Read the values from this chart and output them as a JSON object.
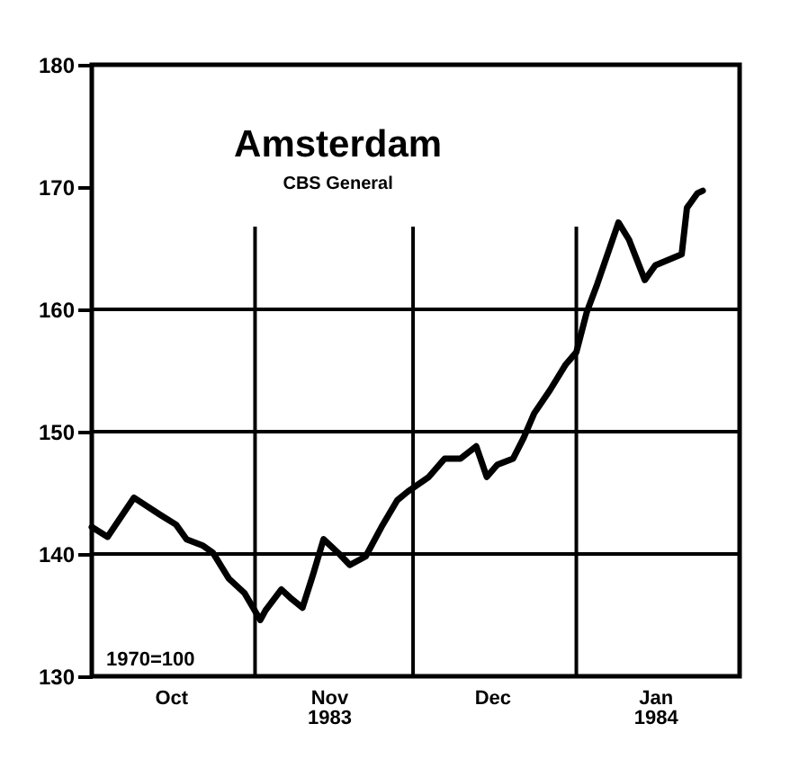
{
  "chart_data": {
    "type": "line",
    "title": "Amsterdam",
    "subtitle": "CBS General",
    "annotations": [
      "1970=100"
    ],
    "x": [
      "1983-10-01",
      "1983-10-04",
      "1983-10-09",
      "1983-10-14",
      "1983-10-17",
      "1983-10-19",
      "1983-10-22",
      "1983-10-24",
      "1983-10-27",
      "1983-10-30",
      "1983-11-02",
      "1983-11-03",
      "1983-11-06",
      "1983-11-08",
      "1983-11-10",
      "1983-11-12",
      "1983-11-14",
      "1983-11-17",
      "1983-11-19",
      "1983-11-22",
      "1983-11-25",
      "1983-11-28",
      "1983-11-30",
      "1983-12-04",
      "1983-12-07",
      "1983-12-10",
      "1983-12-13",
      "1983-12-15",
      "1983-12-17",
      "1983-12-20",
      "1983-12-22",
      "1983-12-24",
      "1983-12-27",
      "1983-12-30",
      "1984-01-01",
      "1984-01-03",
      "1984-01-05",
      "1984-01-09",
      "1984-01-11",
      "1984-01-14",
      "1984-01-16",
      "1984-01-21",
      "1984-01-22",
      "1984-01-24",
      "1984-01-25"
    ],
    "series": [
      {
        "color": "#000000",
        "values": [
          142.2,
          141.4,
          144.6,
          143.2,
          142.4,
          141.2,
          140.7,
          140.1,
          138.0,
          136.8,
          134.6,
          135.4,
          137.1,
          136.3,
          135.6,
          138.3,
          141.2,
          140.0,
          139.1,
          139.8,
          142.2,
          144.4,
          145.1,
          146.3,
          147.8,
          147.8,
          148.8,
          146.3,
          147.3,
          147.8,
          149.5,
          151.5,
          153.4,
          155.5,
          156.5,
          159.8,
          162.1,
          167.1,
          165.7,
          162.4,
          163.6,
          164.5,
          168.3,
          169.5,
          169.7
        ]
      }
    ],
    "xlim": [
      "1983-10-01",
      "1984-02-01"
    ],
    "xticks": [
      {
        "value": "1983-10-16",
        "label": "Oct"
      },
      {
        "value": "1983-11-15",
        "label": "Nov\n1983"
      },
      {
        "value": "1983-12-16",
        "label": "Dec"
      },
      {
        "value": "1984-01-16",
        "label": "Jan\n1984"
      }
    ],
    "ylim": [
      130,
      180
    ],
    "yticks": [
      130,
      140,
      150,
      160,
      170,
      180
    ],
    "ref_lines": [
      {
        "axis": "x",
        "value": "1983-11-01",
        "color": "#000000"
      },
      {
        "axis": "x",
        "value": "1983-12-01",
        "color": "#000000"
      },
      {
        "axis": "x",
        "value": "1984-01-01",
        "color": "#000000"
      },
      {
        "axis": "y",
        "value": 140,
        "color": "#000000"
      },
      {
        "axis": "y",
        "value": 150,
        "color": "#000000"
      },
      {
        "axis": "y",
        "value": 160,
        "color": "#000000"
      }
    ],
    "grid": false,
    "marker": "none",
    "line_style": "solid"
  }
}
